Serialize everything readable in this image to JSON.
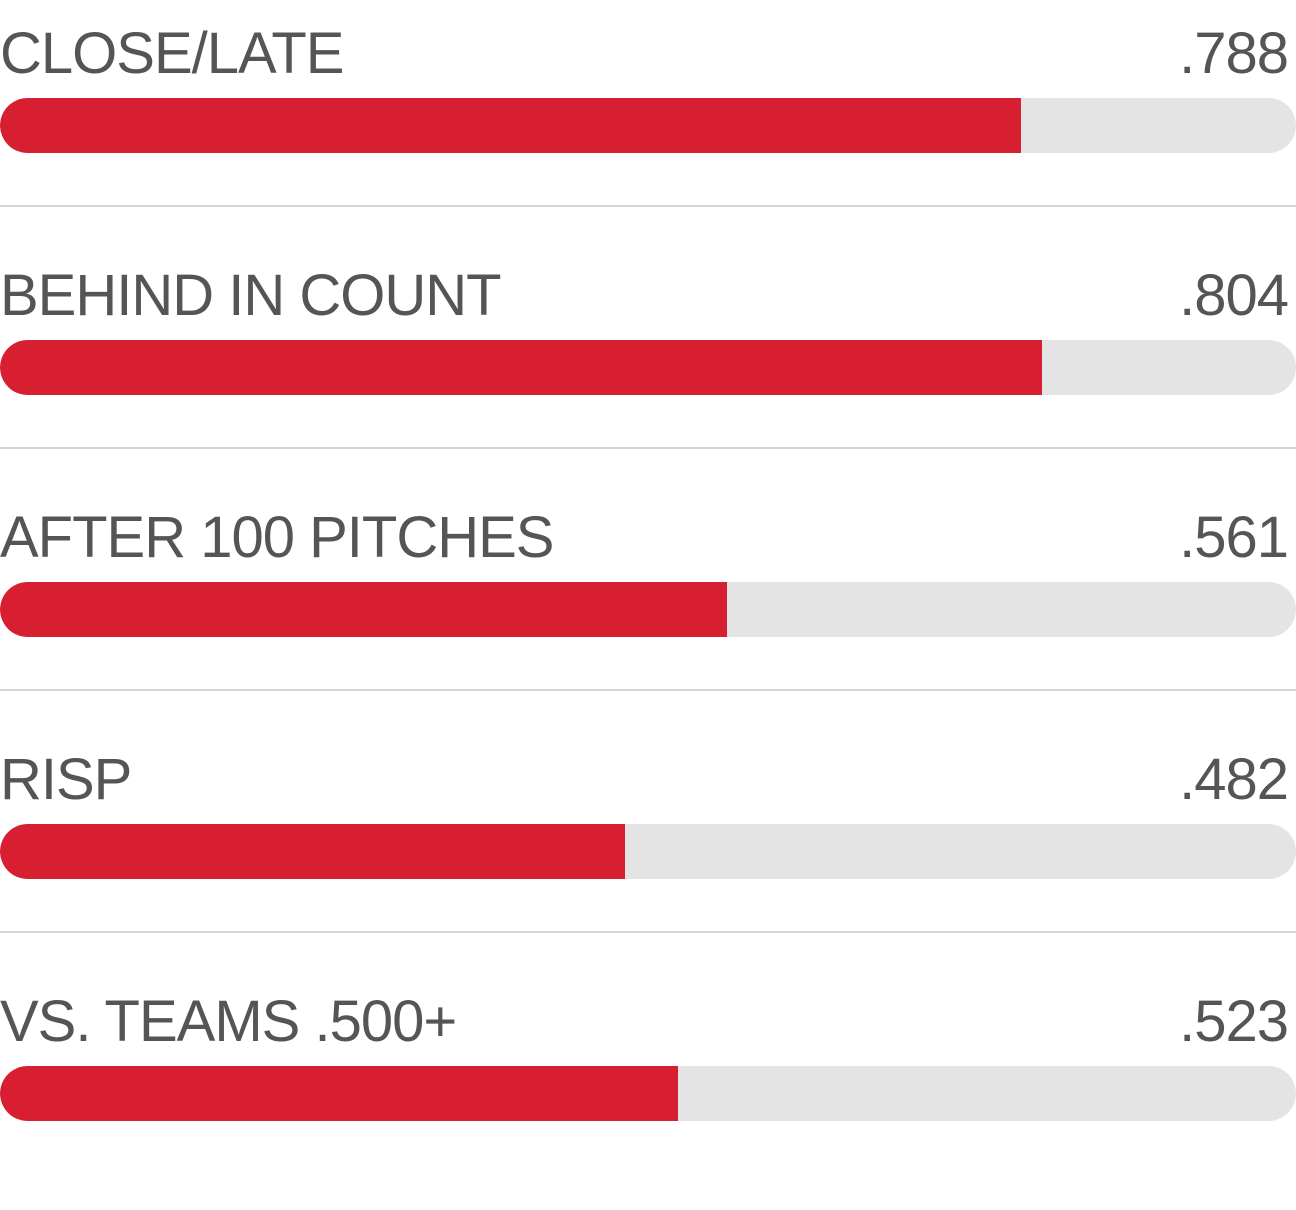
{
  "colors": {
    "bar_fill": "#d71f31",
    "bar_track": "#e4e4e4",
    "text": "#555555",
    "divider": "#d4d4d4"
  },
  "chart_data": {
    "type": "bar",
    "orientation": "horizontal",
    "categories": [
      "CLOSE/LATE",
      "BEHIND IN COUNT",
      "AFTER 100 PITCHES",
      "RISP",
      "VS. TEAMS .500+"
    ],
    "values": [
      0.788,
      0.804,
      0.561,
      0.482,
      0.523
    ],
    "value_labels": [
      ".788",
      ".804",
      ".561",
      ".482",
      ".523"
    ],
    "xlim": [
      0,
      1
    ],
    "grid": false,
    "legend": "none"
  }
}
